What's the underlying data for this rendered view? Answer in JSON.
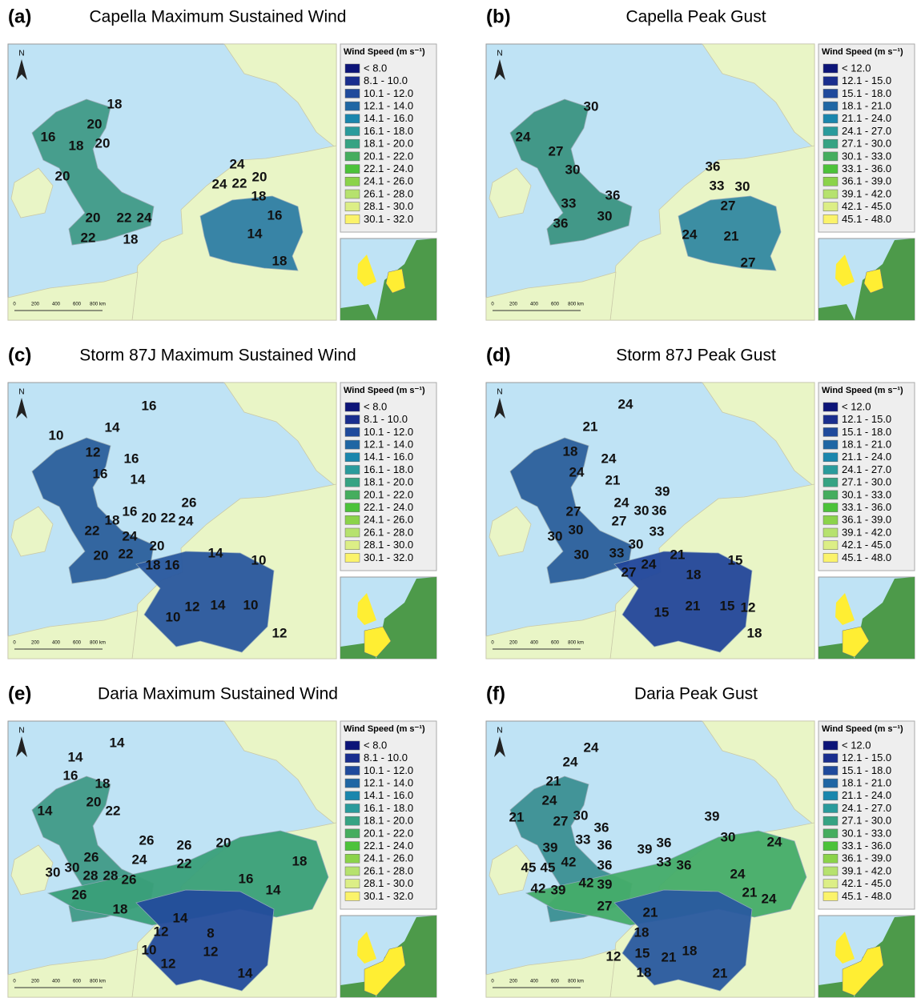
{
  "north": "N",
  "scale_labels": [
    "0",
    "200",
    "400",
    "600",
    "800 km"
  ],
  "legend_title": "Wind Speed (m s⁻¹)",
  "legend_colors": [
    "#0c1478",
    "#1a2e8e",
    "#1f4a9c",
    "#1f66a4",
    "#1a86ad",
    "#2a9b9c",
    "#36a383",
    "#45ad5e",
    "#4cc23a",
    "#8bd34a",
    "#b6e26e",
    "#dcee86",
    "#fbf36a"
  ],
  "panels": [
    {
      "letter": "(a)",
      "title": "Capella Maximum Sustained Wind",
      "legend": [
        "< 8.0",
        "8.1 - 10.0",
        "10.1 - 12.0",
        "12.1 - 14.0",
        "14.1 - 16.0",
        "16.1 - 18.0",
        "18.1 - 20.0",
        "20.1 - 22.0",
        "22.1 - 24.0",
        "24.1 - 26.0",
        "26.1 - 28.0",
        "28.1 - 30.0",
        "30.1 - 32.0"
      ],
      "labels": [
        18,
        16,
        20,
        18,
        20,
        20,
        24,
        20,
        24,
        22,
        18,
        20,
        22,
        24,
        16,
        22,
        18,
        14,
        18
      ]
    },
    {
      "letter": "(b)",
      "title": "Capella Peak Gust",
      "legend": [
        "< 12.0",
        "12.1 - 15.0",
        "15.1 - 18.0",
        "18.1 - 21.0",
        "21.1 - 24.0",
        "24.1 - 27.0",
        "27.1 - 30.0",
        "30.1 - 33.0",
        "33.1 - 36.0",
        "36.1 - 39.0",
        "39.1 - 42.0",
        "42.1 - 45.0",
        "45.1 - 48.0"
      ],
      "labels": [
        30,
        24,
        27,
        30,
        36,
        33,
        30,
        27,
        33,
        36,
        36,
        30,
        24,
        21,
        27
      ]
    },
    {
      "letter": "(c)",
      "title": "Storm 87J Maximum Sustained Wind",
      "legend": [
        "< 8.0",
        "8.1 - 10.0",
        "10.1 - 12.0",
        "12.1 - 14.0",
        "14.1 - 16.0",
        "16.1 - 18.0",
        "18.1 - 20.0",
        "20.1 - 22.0",
        "22.1 - 24.0",
        "24.1 - 26.0",
        "26.1 - 28.0",
        "28.1 - 30.0",
        "30.1 - 32.0"
      ],
      "labels": [
        16,
        10,
        14,
        12,
        16,
        16,
        14,
        26,
        18,
        16,
        20,
        22,
        24,
        22,
        24,
        20,
        20,
        22,
        18,
        16,
        14,
        10,
        12,
        14,
        10,
        10,
        12
      ]
    },
    {
      "letter": "(d)",
      "title": "Storm 87J Peak Gust",
      "legend": [
        "< 12.0",
        "12.1 - 15.0",
        "15.1 - 18.0",
        "18.1 - 21.0",
        "21.1 - 24.0",
        "24.1 - 27.0",
        "27.1 - 30.0",
        "30.1 - 33.0",
        "33.1 - 36.0",
        "36.1 - 39.0",
        "39.1 - 42.0",
        "42.1 - 45.0",
        "45.1 - 48.0"
      ],
      "labels": [
        24,
        21,
        18,
        24,
        24,
        21,
        39,
        24,
        30,
        36,
        27,
        27,
        33,
        30,
        30,
        33,
        30,
        21,
        15,
        30,
        24,
        27,
        18,
        21,
        15,
        12,
        15,
        18
      ]
    },
    {
      "letter": "(e)",
      "title": "Daria Maximum Sustained Wind",
      "legend": [
        "< 8.0",
        "8.1 - 10.0",
        "10.1 - 12.0",
        "12.1 - 14.0",
        "14.1 - 16.0",
        "16.1 - 18.0",
        "18.1 - 20.0",
        "20.1 - 22.0",
        "22.1 - 24.0",
        "24.1 - 26.0",
        "26.1 - 28.0",
        "28.1 - 30.0",
        "30.1 - 32.0"
      ],
      "labels": [
        14,
        14,
        16,
        18,
        14,
        20,
        22,
        26,
        26,
        20,
        24,
        22,
        26,
        30,
        30,
        28,
        28,
        26,
        18,
        16,
        14,
        26,
        18,
        14,
        12,
        8,
        10,
        12,
        12,
        14
      ]
    },
    {
      "letter": "(f)",
      "title": "Daria Peak Gust",
      "legend": [
        "< 12.0",
        "12.1 - 15.0",
        "15.1 - 18.0",
        "18.1 - 21.0",
        "21.1 - 24.0",
        "24.1 - 27.0",
        "27.1 - 30.0",
        "30.1 - 33.0",
        "33.1 - 36.0",
        "36.1 - 39.0",
        "39.1 - 42.0",
        "42.1 - 45.0",
        "45.1 - 48.0"
      ],
      "labels": [
        24,
        24,
        21,
        24,
        21,
        27,
        30,
        36,
        33,
        36,
        39,
        30,
        24,
        39,
        36,
        33,
        36,
        39,
        45,
        45,
        42,
        36,
        24,
        42,
        39,
        42,
        39,
        21,
        24,
        27,
        21,
        18,
        12,
        15,
        21,
        18,
        18,
        21
      ]
    }
  ]
}
